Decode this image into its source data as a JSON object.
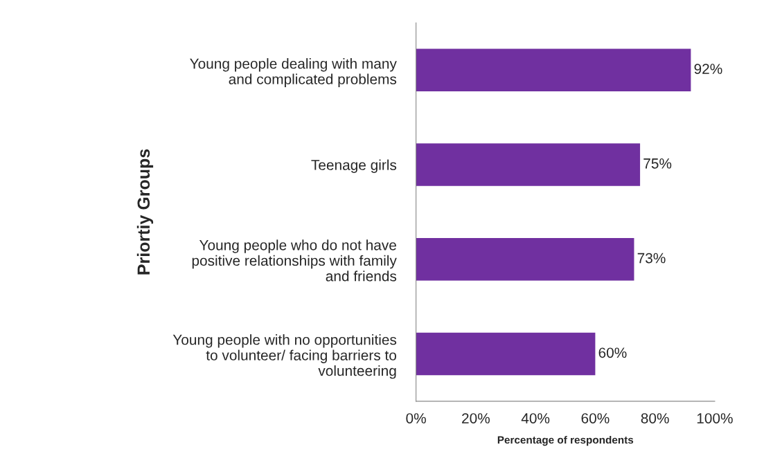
{
  "chart_data": {
    "type": "bar",
    "orientation": "horizontal",
    "ylabel": "Priortiy Groups",
    "xlabel": "Percentage of respondents",
    "categories": [
      "Young people dealing with many\nand complicated problems",
      "Teenage girls",
      "Young people who do not have\npositive relationships with family\nand friends",
      "Young people with no opportunities\nto volunteer/ facing barriers to\nvolunteering"
    ],
    "values": [
      92,
      75,
      73,
      60
    ],
    "value_labels": [
      "92%",
      "75%",
      "73%",
      "60%"
    ],
    "color": "#7030a0",
    "xlim": [
      0,
      100
    ],
    "xticks": [
      {
        "value": 0,
        "label": "0%"
      },
      {
        "value": 20,
        "label": "20%"
      },
      {
        "value": 40,
        "label": "40%"
      },
      {
        "value": 60,
        "label": "60%"
      },
      {
        "value": 80,
        "label": "80%"
      },
      {
        "value": 100,
        "label": "100%"
      }
    ],
    "grid": false,
    "legend": false
  }
}
